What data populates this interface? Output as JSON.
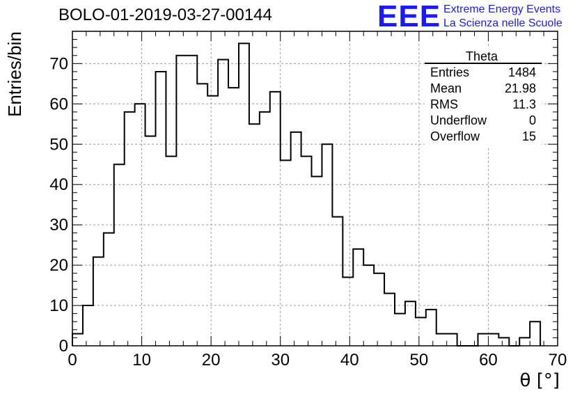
{
  "header": {
    "title": "BOLO-01-2019-03-27-00144",
    "logo_mark": "EEE",
    "logo_line1": "Extreme Energy Events",
    "logo_line2": "La Scienza nelle Scuole",
    "logo_color": "#1a1aff"
  },
  "stats": {
    "name": "Theta",
    "rows": [
      {
        "label": "Entries",
        "value": "1484"
      },
      {
        "label": "Mean",
        "value": "21.98"
      },
      {
        "label": "RMS",
        "value": "11.3"
      },
      {
        "label": "Underflow",
        "value": "0"
      },
      {
        "label": "Overflow",
        "value": "15"
      }
    ]
  },
  "chart_data": {
    "type": "bar",
    "style": "step-histogram",
    "title": "BOLO-01-2019-03-27-00144",
    "xlabel": "θ [°]",
    "ylabel": "Entries/bin",
    "xlim": [
      0,
      70
    ],
    "ylim": [
      0,
      78
    ],
    "grid": true,
    "bin_width": 1.5,
    "bin_start": 0,
    "xticks": [
      0,
      10,
      20,
      30,
      40,
      50,
      60,
      70
    ],
    "yticks": [
      0,
      10,
      20,
      30,
      40,
      50,
      60,
      70
    ],
    "values": [
      3,
      10,
      22,
      28,
      45,
      58,
      60,
      52,
      68,
      47,
      72,
      72,
      65,
      62,
      71,
      64,
      75,
      55,
      58,
      63,
      46,
      53,
      47,
      42,
      50,
      32,
      17,
      24,
      20,
      18,
      13,
      8,
      11,
      7,
      9,
      3,
      3,
      0,
      0,
      3,
      3,
      2,
      0,
      2,
      6
    ],
    "line_color": "#000000"
  }
}
